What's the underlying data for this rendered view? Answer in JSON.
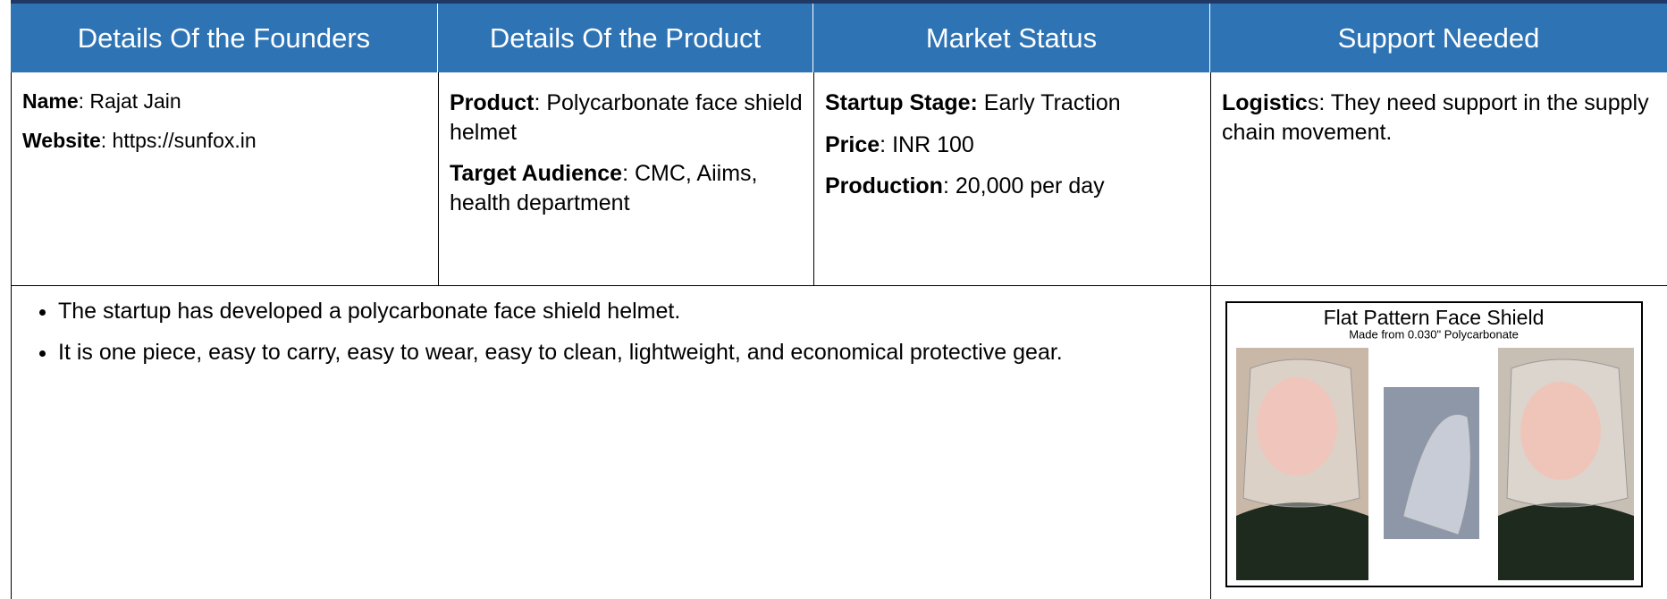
{
  "table": {
    "headers": [
      "Details Of the Founders",
      "Details Of the Product",
      "Market Status",
      "Support Needed"
    ],
    "founders": [
      {
        "label": "Name",
        "value": ": Rajat Jain"
      },
      {
        "label": "Website",
        "value": ": https://sunfox.in"
      }
    ],
    "product": [
      {
        "label": "Product",
        "value": ": Polycarbonate face shield helmet"
      },
      {
        "label": "Target Audience",
        "value": ": CMC, Aiims, health department"
      }
    ],
    "market": [
      {
        "label": "Startup Stage:",
        "value": " Early Traction"
      },
      {
        "label": "Price",
        "value": ": INR 100"
      },
      {
        "label": "Production",
        "value": ": 20,000 per day"
      }
    ],
    "support": [
      {
        "label": "Logistic",
        "value": "s: They need support in the supply chain movement."
      }
    ],
    "bullets": [
      "The startup has developed a polycarbonate face shield helmet.",
      "It is one piece, easy to carry, easy to wear, easy to clean, lightweight, and economical protective gear."
    ],
    "image": {
      "title": "Flat Pattern Face Shield",
      "subtitle": "Made from 0.030\" Polycarbonate"
    }
  }
}
